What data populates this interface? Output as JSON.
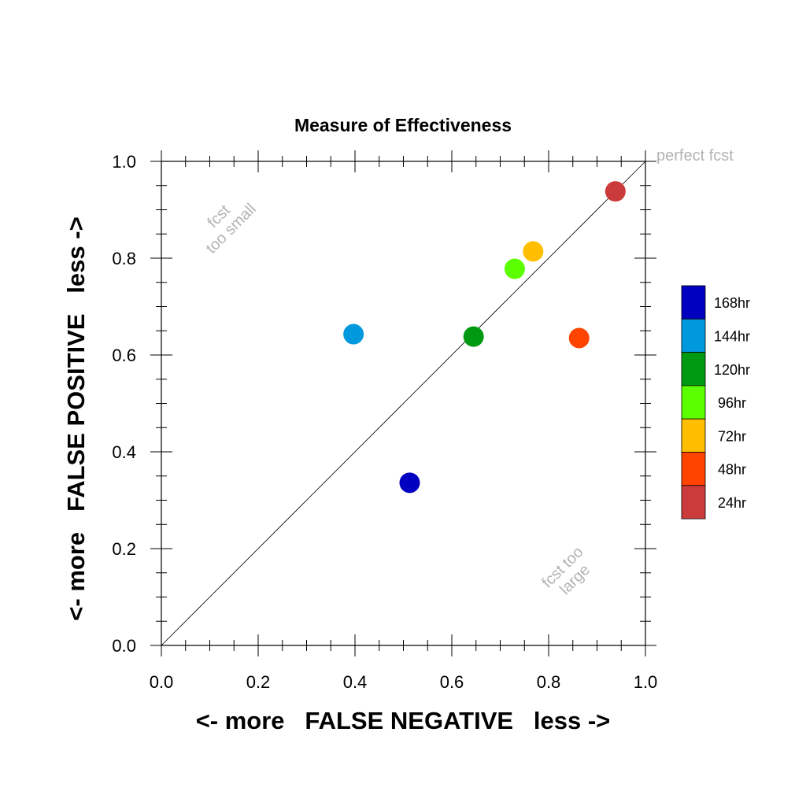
{
  "chart_data": {
    "type": "scatter",
    "title": "Measure of Effectiveness",
    "xlabel": "<- more   FALSE NEGATIVE   less ->",
    "ylabel": "<- more   FALSE POSITIVE   less ->",
    "xlim": [
      0.0,
      1.0
    ],
    "ylim": [
      0.0,
      1.0
    ],
    "x_tick_labels": [
      "0.0",
      "0.2",
      "0.4",
      "0.6",
      "0.8",
      "1.0"
    ],
    "y_tick_labels": [
      "0.0",
      "0.2",
      "0.4",
      "0.6",
      "0.8",
      "1.0"
    ],
    "grid": false,
    "reference_line": "diagonal y = x",
    "annotations": {
      "perfect": "perfect fcst",
      "upper_left_line1": "fcst",
      "upper_left_line2": "too small",
      "lower_right_line1": "fcst too",
      "lower_right_line2": "large"
    },
    "legend_position": "right",
    "series": [
      {
        "name": "168hr",
        "color": "#0000c0",
        "x": 0.513,
        "y": 0.336
      },
      {
        "name": "144hr",
        "color": "#0099dd",
        "x": 0.397,
        "y": 0.643
      },
      {
        "name": "120hr",
        "color": "#009a12",
        "x": 0.645,
        "y": 0.638
      },
      {
        "name": "96hr",
        "color": "#5cff00",
        "x": 0.73,
        "y": 0.778
      },
      {
        "name": "72hr",
        "color": "#ffbf00",
        "x": 0.768,
        "y": 0.814
      },
      {
        "name": "48hr",
        "color": "#ff4400",
        "x": 0.863,
        "y": 0.635
      },
      {
        "name": "24hr",
        "color": "#cc3b3b",
        "x": 0.938,
        "y": 0.938
      }
    ]
  }
}
